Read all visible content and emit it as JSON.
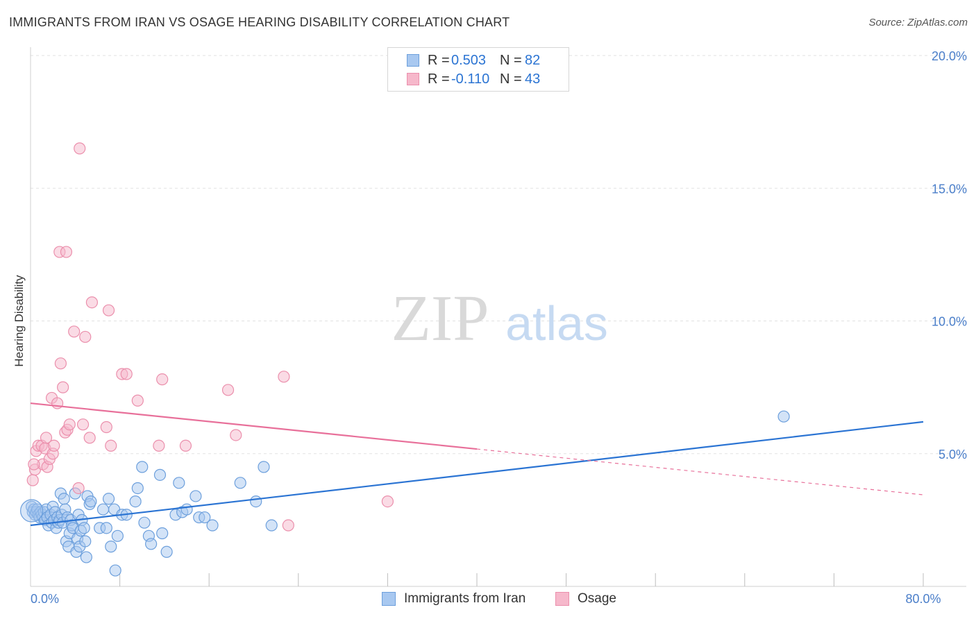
{
  "title": "IMMIGRANTS FROM IRAN VS OSAGE HEARING DISABILITY CORRELATION CHART",
  "source": "Source: ZipAtlas.com",
  "watermark": {
    "zip": "ZIP",
    "atlas": "atlas"
  },
  "legend_top": {
    "rows": [
      {
        "r_label": "R =",
        "r_value": "0.503",
        "n_label": "N =",
        "n_value": "82"
      },
      {
        "r_label": "R =",
        "r_value": "-0.110",
        "n_label": "N =",
        "n_value": "43"
      }
    ]
  },
  "legend_bottom": {
    "iran": "Immigrants from Iran",
    "osage": "Osage"
  },
  "colors": {
    "iran_fill": "#a8c8f0",
    "iran_stroke": "#6c9fdc",
    "iran_line": "#2b74d3",
    "osage_fill": "#f6b8cb",
    "osage_stroke": "#eb8fac",
    "osage_line": "#e8709a",
    "tick_label": "#4a7ec9",
    "grid": "#e2e2e2"
  },
  "chart_data": {
    "type": "scatter",
    "title": "IMMIGRANTS FROM IRAN VS OSAGE HEARING DISABILITY CORRELATION CHART",
    "xlabel": "",
    "ylabel": "Hearing Disability",
    "xlim": [
      0,
      80
    ],
    "ylim": [
      0,
      20
    ],
    "x_tick_labels": [
      {
        "value": 0,
        "label": "0.0%"
      },
      {
        "value": 80,
        "label": "80.0%"
      }
    ],
    "y_tick_labels": [
      {
        "value": 5,
        "label": "5.0%"
      },
      {
        "value": 10,
        "label": "10.0%"
      },
      {
        "value": 15,
        "label": "15.0%"
      },
      {
        "value": 20,
        "label": "20.0%"
      }
    ],
    "x_minor_ticks": [
      8,
      16,
      24,
      32,
      40,
      48,
      56,
      64,
      72,
      80
    ],
    "series": [
      {
        "name": "Immigrants from Iran",
        "r": 0.503,
        "n": 82,
        "trend": {
          "x": [
            0,
            80
          ],
          "y": [
            2.3,
            6.2
          ],
          "dashed_from": null
        },
        "points": [
          [
            0.1,
            3.0
          ],
          [
            0.2,
            2.8
          ],
          [
            0.3,
            2.9
          ],
          [
            0.4,
            2.7
          ],
          [
            0.5,
            2.8
          ],
          [
            0.6,
            2.9
          ],
          [
            0.7,
            2.7
          ],
          [
            0.8,
            2.6
          ],
          [
            0.9,
            2.8
          ],
          [
            1.0,
            2.7
          ],
          [
            1.1,
            2.6
          ],
          [
            1.2,
            2.8
          ],
          [
            1.3,
            2.5
          ],
          [
            1.4,
            2.9
          ],
          [
            1.5,
            2.6
          ],
          [
            1.6,
            2.3
          ],
          [
            1.8,
            2.7
          ],
          [
            1.9,
            2.4
          ],
          [
            2.0,
            3.0
          ],
          [
            2.1,
            2.5
          ],
          [
            2.2,
            2.8
          ],
          [
            2.3,
            2.2
          ],
          [
            2.4,
            2.6
          ],
          [
            2.5,
            2.4
          ],
          [
            2.6,
            2.5
          ],
          [
            2.7,
            3.5
          ],
          [
            2.8,
            2.7
          ],
          [
            2.9,
            2.4
          ],
          [
            3.0,
            3.3
          ],
          [
            3.1,
            2.9
          ],
          [
            3.2,
            1.7
          ],
          [
            3.3,
            2.6
          ],
          [
            3.4,
            1.5
          ],
          [
            3.5,
            2.0
          ],
          [
            3.6,
            2.5
          ],
          [
            3.7,
            2.3
          ],
          [
            3.8,
            2.2
          ],
          [
            4.0,
            3.5
          ],
          [
            4.1,
            1.3
          ],
          [
            4.2,
            1.8
          ],
          [
            4.3,
            2.7
          ],
          [
            4.4,
            1.5
          ],
          [
            4.5,
            2.1
          ],
          [
            4.6,
            2.5
          ],
          [
            4.8,
            2.2
          ],
          [
            4.9,
            1.7
          ],
          [
            5.0,
            1.1
          ],
          [
            5.1,
            3.4
          ],
          [
            5.3,
            3.1
          ],
          [
            5.4,
            3.2
          ],
          [
            6.2,
            2.2
          ],
          [
            6.5,
            2.9
          ],
          [
            6.8,
            2.2
          ],
          [
            7.0,
            3.3
          ],
          [
            7.2,
            1.5
          ],
          [
            7.5,
            2.9
          ],
          [
            7.6,
            0.6
          ],
          [
            7.8,
            1.9
          ],
          [
            8.2,
            2.7
          ],
          [
            8.6,
            2.7
          ],
          [
            9.4,
            3.2
          ],
          [
            9.6,
            3.7
          ],
          [
            10.0,
            4.5
          ],
          [
            10.2,
            2.4
          ],
          [
            10.6,
            1.9
          ],
          [
            10.8,
            1.6
          ],
          [
            11.6,
            4.2
          ],
          [
            11.8,
            2.0
          ],
          [
            12.2,
            1.3
          ],
          [
            13.0,
            2.7
          ],
          [
            13.3,
            3.9
          ],
          [
            13.6,
            2.8
          ],
          [
            14.0,
            2.9
          ],
          [
            14.8,
            3.4
          ],
          [
            15.1,
            2.6
          ],
          [
            15.6,
            2.6
          ],
          [
            16.3,
            2.3
          ],
          [
            18.8,
            3.9
          ],
          [
            20.2,
            3.2
          ],
          [
            20.9,
            4.5
          ],
          [
            21.6,
            2.3
          ],
          [
            67.5,
            6.4
          ]
        ]
      },
      {
        "name": "Osage",
        "r": -0.11,
        "n": 43,
        "trend": {
          "x": [
            0,
            80
          ],
          "y": [
            6.9,
            3.45
          ],
          "dashed_from": 40
        },
        "points": [
          [
            0.2,
            4.0
          ],
          [
            0.4,
            4.4
          ],
          [
            0.5,
            5.1
          ],
          [
            0.7,
            5.3
          ],
          [
            1.0,
            5.3
          ],
          [
            1.1,
            4.6
          ],
          [
            1.3,
            5.2
          ],
          [
            1.4,
            5.6
          ],
          [
            1.5,
            4.5
          ],
          [
            1.7,
            4.8
          ],
          [
            1.9,
            7.1
          ],
          [
            2.0,
            5.0
          ],
          [
            2.1,
            5.3
          ],
          [
            2.4,
            6.9
          ],
          [
            2.6,
            12.6
          ],
          [
            2.7,
            8.4
          ],
          [
            2.9,
            7.5
          ],
          [
            3.1,
            5.8
          ],
          [
            3.2,
            12.6
          ],
          [
            3.3,
            5.9
          ],
          [
            3.5,
            6.1
          ],
          [
            3.9,
            9.6
          ],
          [
            4.3,
            3.7
          ],
          [
            4.4,
            16.5
          ],
          [
            4.7,
            6.1
          ],
          [
            4.9,
            9.4
          ],
          [
            5.3,
            5.6
          ],
          [
            5.5,
            10.7
          ],
          [
            6.8,
            6.0
          ],
          [
            7.0,
            10.4
          ],
          [
            7.2,
            5.3
          ],
          [
            8.2,
            8.0
          ],
          [
            8.6,
            8.0
          ],
          [
            9.6,
            7.0
          ],
          [
            11.5,
            5.3
          ],
          [
            11.8,
            7.8
          ],
          [
            13.9,
            5.3
          ],
          [
            17.7,
            7.4
          ],
          [
            18.4,
            5.7
          ],
          [
            22.7,
            7.9
          ],
          [
            32.0,
            3.2
          ],
          [
            23.1,
            2.3
          ],
          [
            0.3,
            4.6
          ]
        ]
      }
    ]
  }
}
